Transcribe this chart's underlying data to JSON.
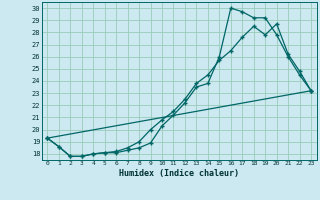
{
  "xlabel": "Humidex (Indice chaleur)",
  "bg_color": "#cce8f0",
  "grid_color": "#99ccbb",
  "line_color": "#006666",
  "xlim": [
    -0.5,
    23.5
  ],
  "ylim": [
    17.5,
    30.5
  ],
  "xticks": [
    0,
    1,
    2,
    3,
    4,
    5,
    6,
    7,
    8,
    9,
    10,
    11,
    12,
    13,
    14,
    15,
    16,
    17,
    18,
    19,
    20,
    21,
    22,
    23
  ],
  "yticks": [
    18,
    19,
    20,
    21,
    22,
    23,
    24,
    25,
    26,
    27,
    28,
    29,
    30
  ],
  "line1_x": [
    0,
    1,
    2,
    3,
    4,
    5,
    6,
    7,
    8,
    9,
    10,
    11,
    12,
    13,
    14,
    15,
    16,
    17,
    18,
    19,
    20,
    21,
    22,
    23
  ],
  "line1_y": [
    19.3,
    18.6,
    17.8,
    17.8,
    18.0,
    18.1,
    18.1,
    18.3,
    18.5,
    18.9,
    20.3,
    21.2,
    22.2,
    23.5,
    23.8,
    26.0,
    30.0,
    29.7,
    29.2,
    29.2,
    27.8,
    26.0,
    24.5,
    23.2
  ],
  "line2_x": [
    0,
    1,
    2,
    3,
    4,
    5,
    6,
    7,
    8,
    9,
    10,
    11,
    12,
    13,
    14,
    15,
    16,
    17,
    18,
    19,
    20,
    21,
    22,
    23
  ],
  "line2_y": [
    19.3,
    18.6,
    17.8,
    17.8,
    18.0,
    18.1,
    18.2,
    18.5,
    19.0,
    20.0,
    20.8,
    21.5,
    22.5,
    23.8,
    24.5,
    25.7,
    26.5,
    27.6,
    28.5,
    27.8,
    28.7,
    26.2,
    24.8,
    23.2
  ],
  "line3_x": [
    0,
    23
  ],
  "line3_y": [
    19.3,
    23.2
  ]
}
